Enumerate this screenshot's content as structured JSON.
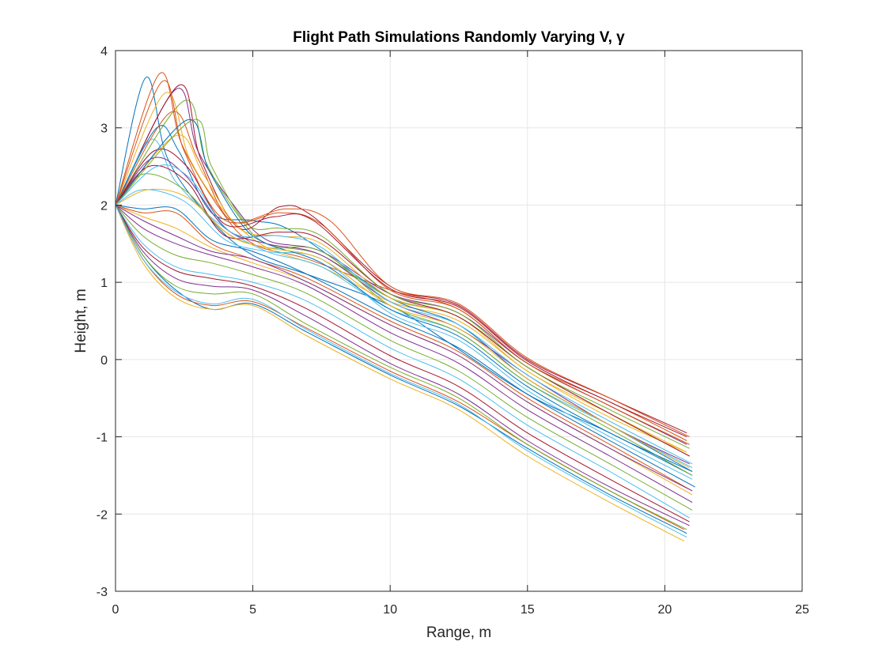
{
  "chart_data": {
    "type": "line",
    "title": "Flight Path Simulations Randomly Varying V, γ",
    "xlabel": "Range, m",
    "ylabel": "Height, m",
    "xlim": [
      0,
      25
    ],
    "ylim": [
      -3,
      4
    ],
    "xticks": [
      0,
      5,
      10,
      15,
      20,
      25
    ],
    "yticks": [
      -3,
      -2,
      -1,
      0,
      1,
      2,
      3,
      4
    ],
    "xtick_labels": [
      "0",
      "5",
      "10",
      "15",
      "20",
      "25"
    ],
    "ytick_labels": [
      "-3",
      "-2",
      "-1",
      "0",
      "1",
      "2",
      "3",
      "4"
    ],
    "grid": true,
    "legend": "none",
    "palette": [
      "#0072BD",
      "#D95319",
      "#EDB120",
      "#7E2F8E",
      "#77AC30",
      "#4DBEEE",
      "#A2142F"
    ],
    "series": [
      {
        "color": "#0072BD",
        "x": [
          0,
          1.1,
          1.9,
          3.5,
          5,
          7,
          10,
          12,
          15,
          18,
          21
        ],
        "y": [
          2,
          3.65,
          2.6,
          1.8,
          1.35,
          1.1,
          0.7,
          0.25,
          -0.45,
          -0.95,
          -1.5
        ]
      },
      {
        "color": "#D95319",
        "x": [
          0,
          1.6,
          2.4,
          3.8,
          5,
          7,
          10,
          12.5,
          15,
          18,
          20.8
        ],
        "y": [
          2,
          3.7,
          2.8,
          1.95,
          1.5,
          1.3,
          0.9,
          0.65,
          -0.05,
          -0.55,
          -1.05
        ]
      },
      {
        "color": "#EDB120",
        "x": [
          0,
          1.8,
          2.7,
          4,
          5.5,
          7.5,
          10,
          12.5,
          15,
          18,
          20.8
        ],
        "y": [
          2,
          3.45,
          2.6,
          1.9,
          1.45,
          1.2,
          0.75,
          0.5,
          -0.15,
          -0.75,
          -1.2
        ]
      },
      {
        "color": "#7E2F8E",
        "x": [
          0,
          2.2,
          3,
          4.3,
          5.5,
          7.5,
          10,
          12.5,
          15,
          18,
          20.8
        ],
        "y": [
          2,
          3.5,
          2.7,
          2.0,
          1.55,
          1.4,
          0.85,
          0.6,
          -0.05,
          -0.6,
          -1.1
        ]
      },
      {
        "color": "#77AC30",
        "x": [
          0,
          2.5,
          3.3,
          4.5,
          5.5,
          7.5,
          10,
          12.5,
          15,
          18,
          20.9
        ],
        "y": [
          2,
          3.35,
          2.55,
          1.85,
          1.5,
          1.35,
          0.8,
          0.55,
          -0.1,
          -0.7,
          -1.25
        ]
      },
      {
        "color": "#A2142F",
        "x": [
          0,
          2.3,
          3.1,
          4.5,
          6,
          7.2,
          10,
          12.5,
          15,
          18,
          20.8
        ],
        "y": [
          2,
          3.55,
          2.6,
          1.7,
          1.98,
          1.85,
          0.95,
          0.7,
          0.0,
          -0.5,
          -0.95
        ]
      },
      {
        "color": "#4DBEEE",
        "x": [
          0,
          1.3,
          2.2,
          3.8,
          5.5,
          7.5,
          10,
          12.5,
          15,
          18,
          21
        ],
        "y": [
          2,
          2.85,
          2.3,
          1.75,
          1.4,
          1.2,
          0.65,
          0.35,
          -0.3,
          -0.85,
          -1.4
        ]
      },
      {
        "color": "#0072BD",
        "x": [
          0,
          1.5,
          2.3,
          3.5,
          5,
          6.5,
          10,
          12.5,
          15,
          18,
          21
        ],
        "y": [
          2,
          3.0,
          2.7,
          1.9,
          1.8,
          1.65,
          0.8,
          0.45,
          -0.25,
          -0.85,
          -1.45
        ]
      },
      {
        "color": "#D95319",
        "x": [
          0,
          2,
          3,
          4.2,
          6,
          7.5,
          10,
          12.5,
          15,
          18,
          20.9
        ],
        "y": [
          2,
          3.2,
          2.6,
          1.8,
          1.9,
          1.75,
          0.9,
          0.65,
          -0.05,
          -0.6,
          -1.1
        ]
      },
      {
        "color": "#EDB120",
        "x": [
          0,
          2.2,
          3.2,
          4.5,
          6,
          7.5,
          10,
          12.5,
          15,
          18,
          20.8
        ],
        "y": [
          2,
          2.9,
          2.4,
          1.7,
          1.6,
          1.5,
          0.8,
          0.55,
          -0.15,
          -0.7,
          -1.2
        ]
      },
      {
        "color": "#7E2F8E",
        "x": [
          0,
          1.3,
          2.5,
          4,
          5.5,
          7.5,
          10,
          12.5,
          15,
          18,
          20.9
        ],
        "y": [
          2,
          2.6,
          2.4,
          1.7,
          1.5,
          1.35,
          0.75,
          0.4,
          -0.2,
          -0.85,
          -1.35
        ]
      },
      {
        "color": "#77AC30",
        "x": [
          0,
          1,
          2.5,
          4,
          5.5,
          7.5,
          10,
          12.5,
          15,
          18,
          21
        ],
        "y": [
          2,
          2.4,
          2.2,
          1.65,
          1.45,
          1.4,
          0.7,
          0.35,
          -0.3,
          -0.9,
          -1.5
        ]
      },
      {
        "color": "#4DBEEE",
        "x": [
          0,
          1,
          2.5,
          4,
          5.5,
          7.5,
          10,
          12.5,
          15,
          18,
          21
        ],
        "y": [
          2,
          2.2,
          2.05,
          1.55,
          1.4,
          1.3,
          0.6,
          0.25,
          -0.4,
          -1.0,
          -1.55
        ]
      },
      {
        "color": "#A2142F",
        "x": [
          0,
          1.2,
          2.6,
          4,
          6,
          7.5,
          10,
          12.5,
          15,
          18,
          20.9
        ],
        "y": [
          2,
          2.5,
          2.3,
          1.6,
          1.65,
          1.55,
          0.85,
          0.55,
          -0.1,
          -0.7,
          -1.25
        ]
      },
      {
        "color": "#0072BD",
        "x": [
          0,
          1,
          2.2,
          3.5,
          5,
          7,
          10,
          12.5,
          15,
          18,
          21.1
        ],
        "y": [
          2,
          1.95,
          1.95,
          1.55,
          1.4,
          1.1,
          0.55,
          0.15,
          -0.45,
          -1.05,
          -1.65
        ]
      },
      {
        "color": "#D95319",
        "x": [
          0,
          1,
          2.2,
          3.5,
          5,
          7,
          10,
          12.5,
          15,
          18,
          21
        ],
        "y": [
          2,
          1.9,
          1.9,
          1.5,
          1.3,
          1.05,
          0.5,
          0.1,
          -0.5,
          -1.1,
          -1.7
        ]
      },
      {
        "color": "#EDB120",
        "x": [
          0,
          1,
          2.2,
          3.5,
          5,
          7,
          10,
          12.5,
          15,
          18,
          21
        ],
        "y": [
          2,
          1.85,
          1.7,
          1.45,
          1.25,
          1.0,
          0.45,
          0.05,
          -0.55,
          -1.15,
          -1.75
        ]
      },
      {
        "color": "#7E2F8E",
        "x": [
          0,
          1,
          2.2,
          3.5,
          5,
          7,
          10,
          12.5,
          15,
          18,
          21
        ],
        "y": [
          2,
          1.7,
          1.5,
          1.35,
          1.2,
          0.95,
          0.35,
          -0.05,
          -0.65,
          -1.25,
          -1.85
        ]
      },
      {
        "color": "#77AC30",
        "x": [
          0,
          1,
          2.2,
          3.5,
          5,
          7,
          10,
          12.5,
          15,
          18,
          21
        ],
        "y": [
          2,
          1.6,
          1.35,
          1.25,
          1.1,
          0.85,
          0.25,
          -0.15,
          -0.75,
          -1.35,
          -1.95
        ]
      },
      {
        "color": "#4DBEEE",
        "x": [
          0,
          1,
          2.2,
          3.5,
          5,
          7,
          10,
          12.5,
          15,
          18,
          20.9
        ],
        "y": [
          2,
          1.5,
          1.2,
          1.1,
          1.0,
          0.75,
          0.15,
          -0.25,
          -0.85,
          -1.45,
          -2.05
        ]
      },
      {
        "color": "#A2142F",
        "x": [
          0,
          1,
          2.2,
          3.5,
          5,
          7,
          10,
          12.5,
          15,
          18,
          20.9
        ],
        "y": [
          2,
          1.45,
          1.15,
          1.05,
          0.95,
          0.65,
          0.05,
          -0.35,
          -0.95,
          -1.55,
          -2.1
        ]
      },
      {
        "color": "#0072BD",
        "x": [
          0,
          1,
          2.2,
          3.5,
          5,
          7,
          10,
          12.5,
          15,
          18,
          20.8
        ],
        "y": [
          2,
          1.35,
          0.9,
          0.65,
          0.72,
          0.35,
          -0.2,
          -0.6,
          -1.15,
          -1.75,
          -2.25
        ]
      },
      {
        "color": "#D95319",
        "x": [
          0,
          1,
          2.2,
          3.5,
          5,
          7,
          10,
          12.5,
          15,
          18,
          20.7
        ],
        "y": [
          2,
          1.3,
          0.85,
          0.7,
          0.75,
          0.4,
          -0.15,
          -0.55,
          -1.1,
          -1.7,
          -2.2
        ]
      },
      {
        "color": "#EDB120",
        "x": [
          0,
          1,
          2.2,
          3.5,
          5,
          7,
          10,
          12.5,
          15,
          18,
          20.7
        ],
        "y": [
          2,
          1.25,
          0.8,
          0.65,
          0.7,
          0.3,
          -0.25,
          -0.65,
          -1.25,
          -1.85,
          -2.35
        ]
      },
      {
        "color": "#7E2F8E",
        "x": [
          0,
          1,
          2.2,
          3.5,
          5,
          7,
          10,
          12.5,
          15,
          18,
          20.9
        ],
        "y": [
          2,
          1.4,
          1.05,
          0.95,
          0.9,
          0.55,
          -0.05,
          -0.45,
          -1.05,
          -1.65,
          -2.15
        ]
      },
      {
        "color": "#77AC30",
        "x": [
          0,
          1,
          2.2,
          3.5,
          5,
          7,
          10,
          12.5,
          15,
          18,
          20.8
        ],
        "y": [
          2,
          1.35,
          0.95,
          0.85,
          0.85,
          0.45,
          -0.1,
          -0.5,
          -1.1,
          -1.7,
          -2.2
        ]
      },
      {
        "color": "#4DBEEE",
        "x": [
          0,
          1,
          2.2,
          3.5,
          5,
          7,
          10,
          12.5,
          15,
          18,
          20.8
        ],
        "y": [
          2,
          1.3,
          0.88,
          0.72,
          0.78,
          0.38,
          -0.18,
          -0.58,
          -1.18,
          -1.78,
          -2.3
        ]
      },
      {
        "color": "#A2142F",
        "x": [
          0,
          1.4,
          2.6,
          4,
          5.8,
          7.2,
          10,
          12.5,
          15,
          18,
          20.8
        ],
        "y": [
          2,
          2.7,
          2.5,
          1.75,
          1.85,
          1.8,
          0.92,
          0.68,
          -0.02,
          -0.55,
          -1.0
        ]
      },
      {
        "color": "#0072BD",
        "x": [
          0,
          2.6,
          3.4,
          4.6,
          5.5,
          7.5,
          10,
          12.5,
          15,
          18,
          21
        ],
        "y": [
          2,
          3.1,
          2.45,
          1.75,
          1.5,
          1.25,
          0.65,
          0.3,
          -0.35,
          -0.95,
          -1.45
        ]
      },
      {
        "color": "#D95319",
        "x": [
          0,
          1.7,
          2.5,
          4,
          6.2,
          7.8,
          10,
          12.5,
          15,
          18,
          20.9
        ],
        "y": [
          2,
          3.6,
          2.7,
          1.8,
          1.95,
          1.8,
          0.95,
          0.72,
          0.02,
          -0.5,
          -1.0
        ]
      },
      {
        "color": "#77AC30",
        "x": [
          0,
          2.8,
          3.5,
          4.8,
          6,
          7.5,
          10,
          12.5,
          15,
          18,
          20.9
        ],
        "y": [
          2,
          3.1,
          2.5,
          1.75,
          1.7,
          1.6,
          0.85,
          0.6,
          -0.1,
          -0.65,
          -1.15
        ]
      },
      {
        "color": "#EDB120",
        "x": [
          0,
          1.2,
          2.6,
          4.2,
          5.5,
          7.5,
          10,
          12.5,
          15,
          18,
          20.9
        ],
        "y": [
          2,
          2.2,
          2.1,
          1.6,
          1.45,
          1.3,
          0.7,
          0.4,
          -0.25,
          -0.85,
          -1.4
        ]
      },
      {
        "color": "#7E2F8E",
        "x": [
          0,
          1,
          2.2,
          3.5,
          5,
          7,
          10,
          12.5,
          15,
          18,
          21
        ],
        "y": [
          2,
          1.8,
          1.6,
          1.4,
          1.3,
          1.0,
          0.45,
          0.05,
          -0.55,
          -1.15,
          -1.7
        ]
      },
      {
        "color": "#4DBEEE",
        "x": [
          0,
          1.5,
          2.7,
          4.2,
          6,
          7.5,
          10,
          12.5,
          15,
          18,
          21
        ],
        "y": [
          2,
          2.5,
          2.35,
          1.65,
          1.6,
          1.45,
          0.75,
          0.45,
          -0.2,
          -0.8,
          -1.35
        ]
      }
    ]
  }
}
